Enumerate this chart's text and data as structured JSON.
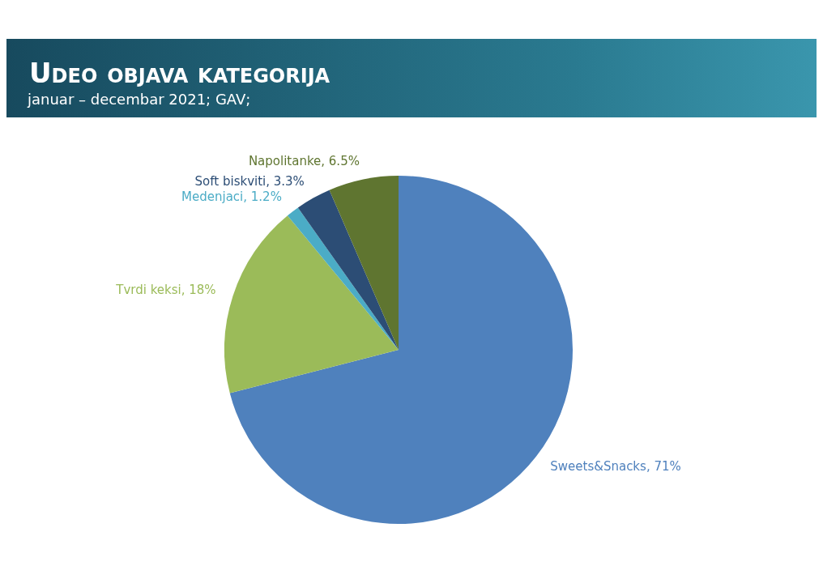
{
  "chart_data": {
    "type": "pie",
    "title": "Udeo objava kategorija",
    "subtitle": "januar – decembar 2021; GAV;",
    "categories": [
      "Sweets&Snacks",
      "Tvrdi keksi",
      "Medenjaci",
      "Soft biskviti",
      "Napolitanke"
    ],
    "values": [
      71,
      18,
      1.2,
      3.3,
      6.5
    ],
    "colors": [
      "#4f81bd",
      "#9bbb59",
      "#4bacc6",
      "#2c4d75",
      "#5f7530"
    ],
    "value_labels": [
      "71%",
      "18%",
      "1.2%",
      "3.3%",
      "6.5%"
    ],
    "legend": false
  }
}
